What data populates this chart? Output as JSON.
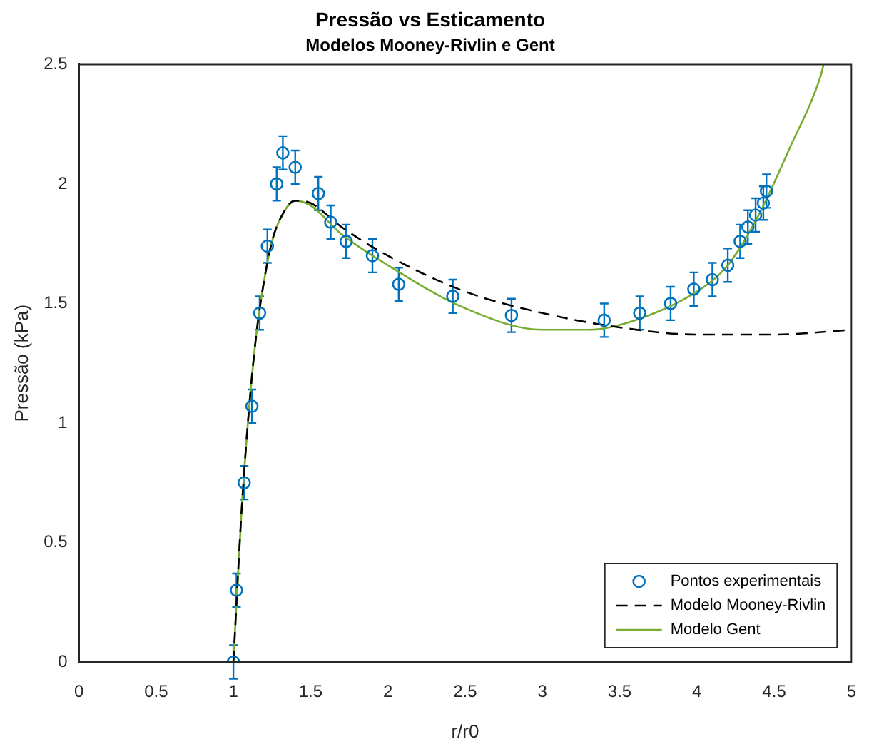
{
  "chart_data": {
    "type": "scatter",
    "title": "Pressão vs Esticamento",
    "subtitle": "Modelos Mooney-Rivlin e Gent",
    "xlabel": "r/r0",
    "ylabel": "Pressão (kPa)",
    "xlim": [
      0,
      5
    ],
    "xticks": [
      0,
      0.5,
      1,
      1.5,
      2,
      2.5,
      3,
      3.5,
      4,
      4.5,
      5
    ],
    "ylim": [
      0,
      2.5
    ],
    "yticks": [
      0,
      0.5,
      1,
      1.5,
      2,
      2.5
    ],
    "grid": false,
    "legend": "bottom right",
    "series": [
      {
        "name": "Pontos experimentais",
        "marker": "circle",
        "color": "#0072bd",
        "x": [
          1,
          1.02,
          1.07,
          1.12,
          1.17,
          1.22,
          1.28,
          1.32,
          1.4,
          1.55,
          1.63,
          1.73,
          1.9,
          2.07,
          2.42,
          2.8,
          3.4,
          3.63,
          3.83,
          3.98,
          4.1,
          4.2,
          4.28,
          4.33,
          4.38,
          4.43,
          4.45
        ],
        "values": [
          0,
          0.3,
          0.75,
          1.07,
          1.46,
          1.74,
          2,
          2.13,
          2.07,
          1.96,
          1.84,
          1.76,
          1.7,
          1.58,
          1.53,
          1.45,
          1.43,
          1.46,
          1.5,
          1.56,
          1.6,
          1.66,
          1.76,
          1.82,
          1.87,
          1.92,
          1.97
        ],
        "errors": [
          0.07,
          0.07,
          0.07,
          0.07,
          0.07,
          0.07,
          0.07,
          0.07,
          0.07,
          0.07,
          0.07,
          0.07,
          0.07,
          0.07,
          0.07,
          0.07,
          0.07,
          0.07,
          0.07,
          0.07,
          0.07,
          0.07,
          0.07,
          0.07,
          0.07,
          0.07,
          0.07
        ]
      },
      {
        "name": "Modelo Mooney-Rivlin",
        "type": "line",
        "line_style": "dashed",
        "marker": "none",
        "color": "#000000",
        "x": [
          1,
          1.05,
          1.1,
          1.15,
          1.2,
          1.25,
          1.3,
          1.4,
          1.5,
          1.7,
          2,
          2.5,
          3,
          3.5,
          4,
          4.5,
          5
        ],
        "values": [
          0,
          0.6,
          1.05,
          1.38,
          1.6,
          1.76,
          1.85,
          1.93,
          1.92,
          1.82,
          1.7,
          1.55,
          1.46,
          1.4,
          1.37,
          1.37,
          1.39
        ]
      },
      {
        "name": "Modelo Gent",
        "type": "line",
        "line_style": "solid",
        "marker": "none",
        "color": "#77ac30",
        "x": [
          1,
          1.05,
          1.1,
          1.15,
          1.2,
          1.25,
          1.3,
          1.4,
          1.5,
          1.7,
          2,
          2.5,
          3,
          3.3,
          3.6,
          4,
          4.2,
          4.4,
          4.6,
          4.8,
          4.82
        ],
        "values": [
          0,
          0.6,
          1.05,
          1.38,
          1.6,
          1.76,
          1.85,
          1.93,
          1.91,
          1.79,
          1.66,
          1.48,
          1.39,
          1.39,
          1.43,
          1.55,
          1.66,
          1.87,
          2.15,
          2.45,
          2.5
        ]
      }
    ]
  }
}
